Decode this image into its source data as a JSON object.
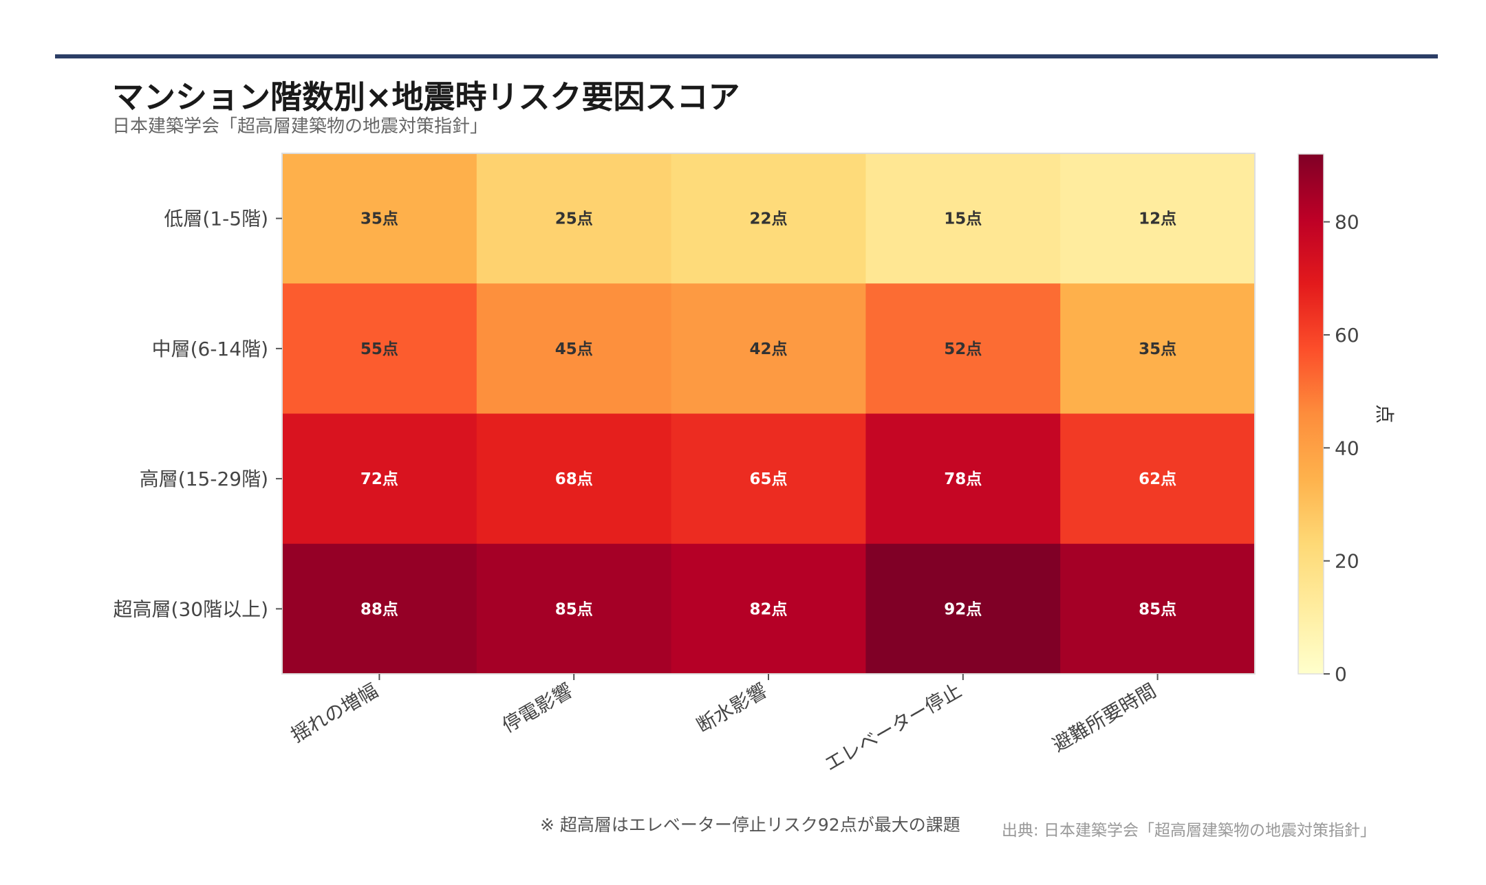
{
  "header": {
    "title": "マンション階数別×地震時リスク要因スコア",
    "subtitle": "日本建築学会「超高層建築物の地震対策指針」"
  },
  "footer": {
    "note": "※ 超高層はエレベーター停止リスク92点が最大の課題",
    "source": "出典: 日本建築学会「超高層建築物の地震対策指針」"
  },
  "colors": {
    "top_rule": "#2c3e66",
    "colormap": "YlOrRd"
  },
  "chart_data": {
    "type": "heatmap",
    "x_categories": [
      "揺れの増幅",
      "停電影響",
      "断水影響",
      "エレベーター停止",
      "避難所要時間"
    ],
    "y_categories": [
      "低層(1-5階)",
      "中層(6-14階)",
      "高層(15-29階)",
      "超高層(30階以上)"
    ],
    "values": [
      [
        35,
        25,
        22,
        15,
        12
      ],
      [
        55,
        45,
        42,
        52,
        35
      ],
      [
        72,
        68,
        65,
        78,
        62
      ],
      [
        88,
        85,
        82,
        92,
        85
      ]
    ],
    "value_suffix": "点",
    "colorbar": {
      "label": "点",
      "range": [
        0,
        92
      ],
      "ticks": [
        0,
        20,
        40,
        60,
        80
      ]
    }
  }
}
